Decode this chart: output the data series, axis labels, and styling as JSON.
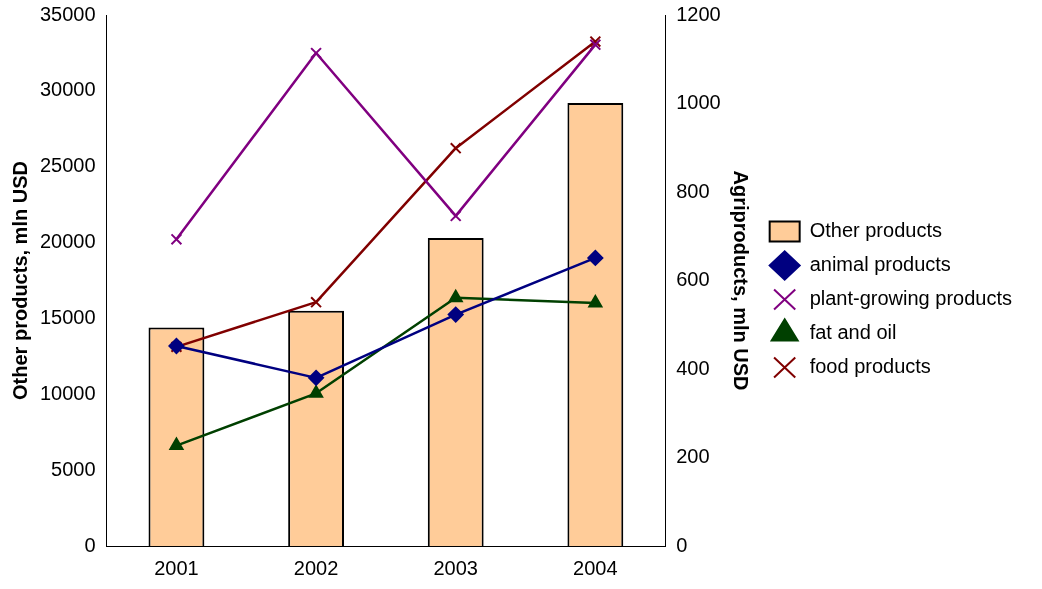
{
  "chart_data": {
    "type": "bar",
    "categories": [
      "2001",
      "2002",
      "2003",
      "2004"
    ],
    "ylabel": "Other products, mln USD",
    "y2label": "Agriproducts, mln USD",
    "ylim": [
      0,
      35000
    ],
    "yticks": [
      0,
      5000,
      10000,
      15000,
      20000,
      25000,
      30000,
      35000
    ],
    "y2lim": [
      0,
      1200
    ],
    "y2ticks": [
      0,
      200,
      400,
      600,
      800,
      1000,
      1200
    ],
    "grid": false,
    "legend": "right",
    "series": [
      {
        "name": "Other products",
        "color": "#ffcc99",
        "values": [
          14400,
          15500,
          20300,
          29200
        ]
      },
      {
        "name": "animal products",
        "type": "line",
        "axis": "y2",
        "marker": "diamond",
        "color": "#000080",
        "values": [
          452,
          380,
          523,
          651
        ]
      },
      {
        "name": "plant-growing products",
        "type": "line",
        "axis": "y2",
        "marker": "cross",
        "color": "#800080",
        "values": [
          693,
          1114,
          746,
          1133
        ]
      },
      {
        "name": "fat and oil",
        "type": "line",
        "axis": "y2",
        "marker": "triangle",
        "color": "#004000",
        "values": [
          227,
          345,
          561,
          549
        ]
      },
      {
        "name": "food products",
        "type": "line",
        "axis": "y2",
        "marker": "cross",
        "color": "#800000",
        "values": [
          450,
          551,
          899,
          1140
        ]
      }
    ]
  }
}
